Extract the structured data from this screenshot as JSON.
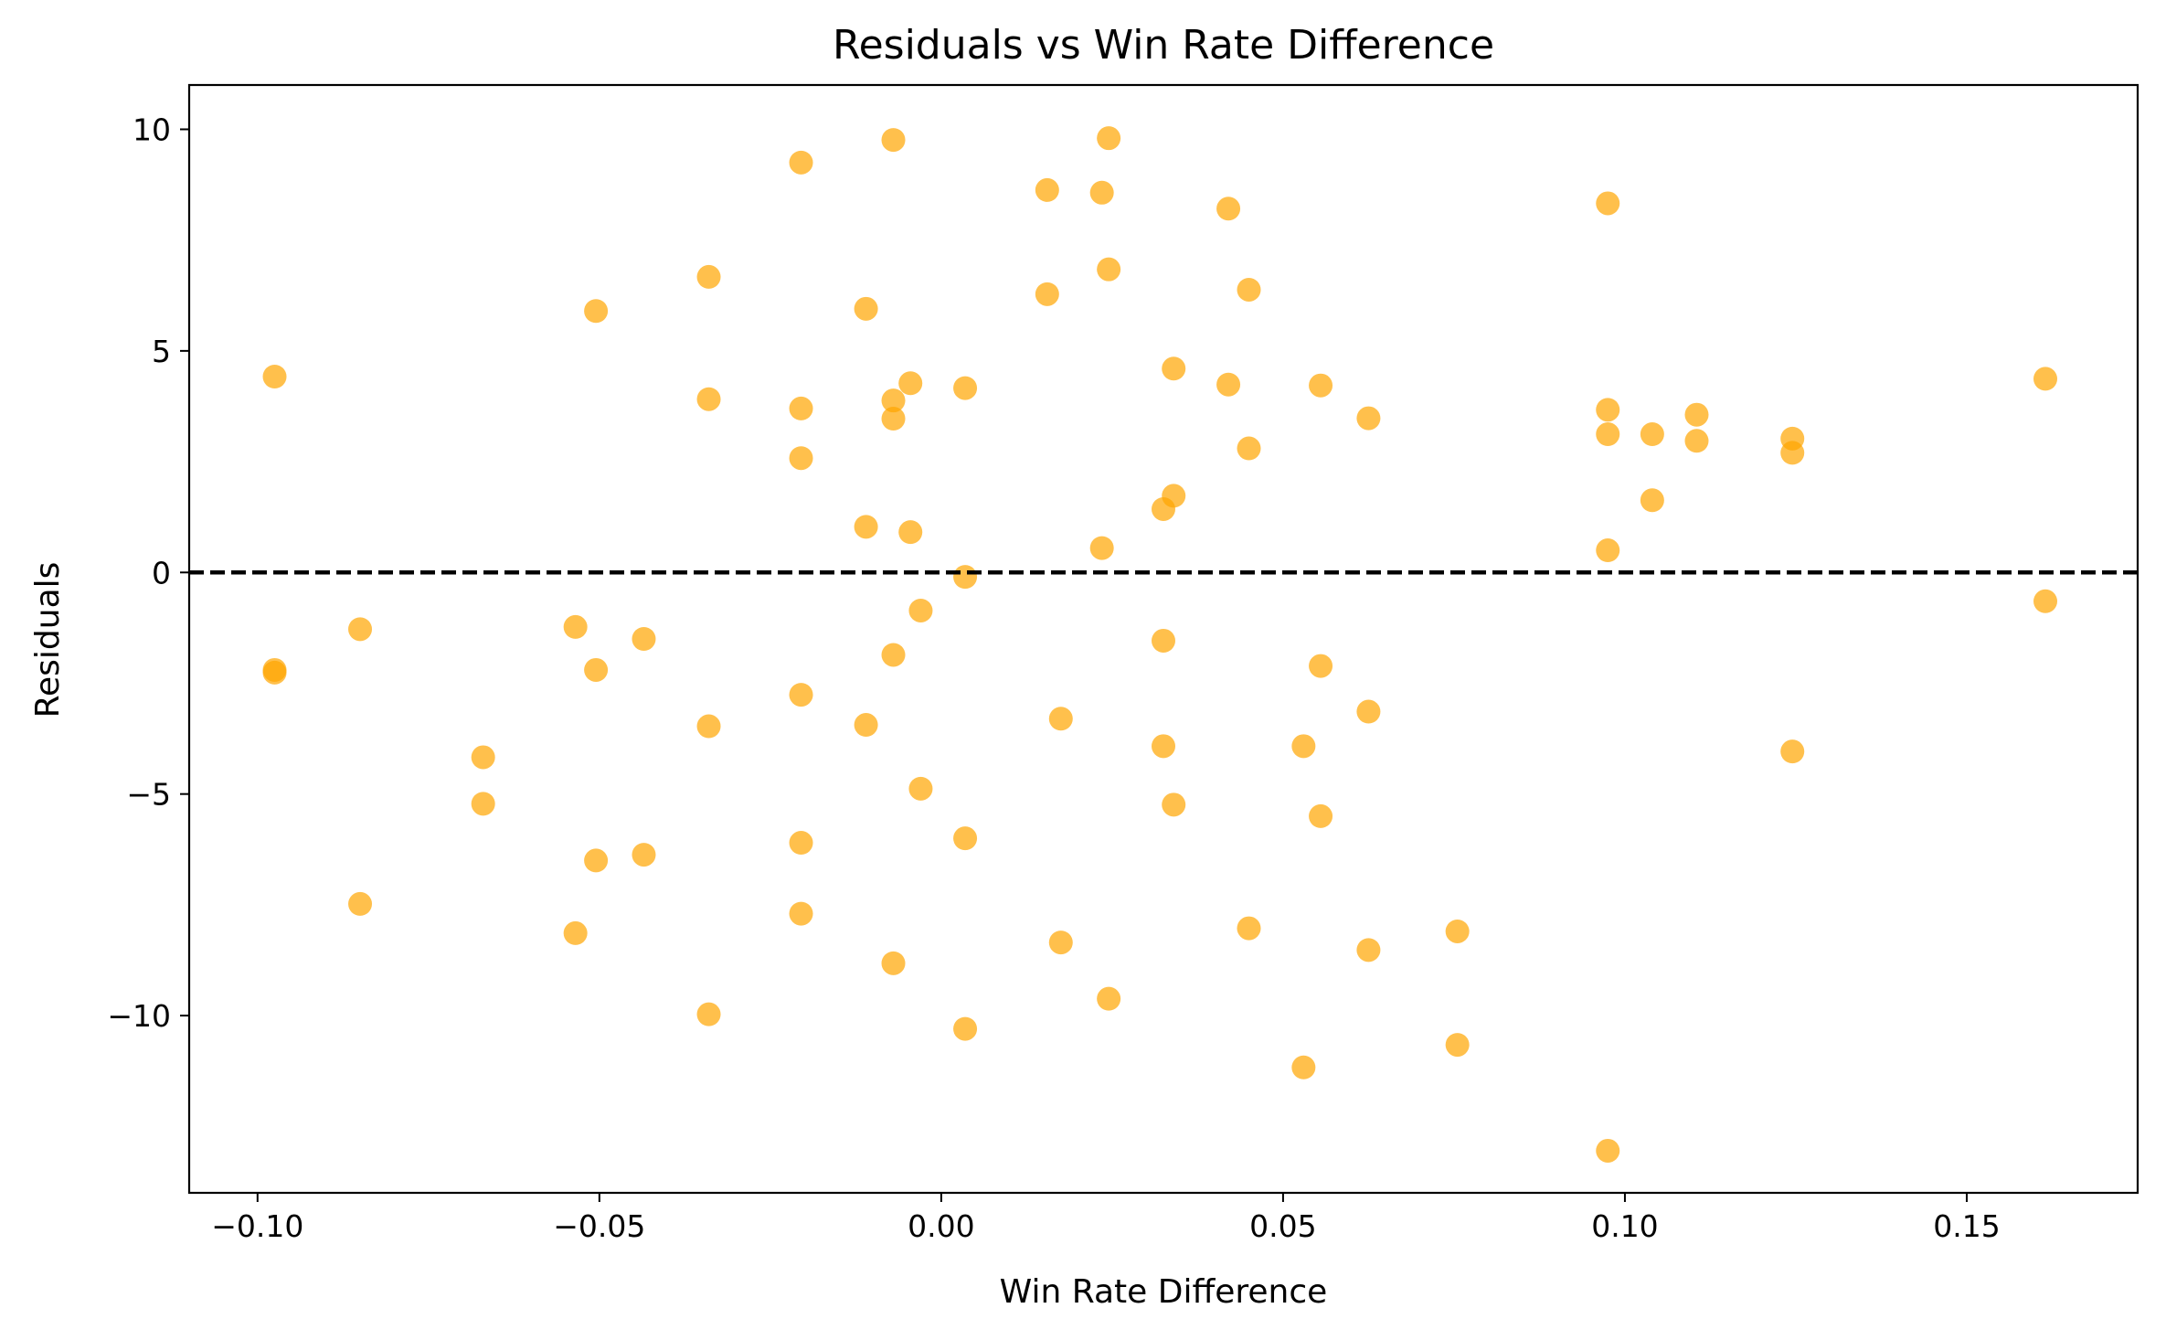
{
  "chart_data": {
    "type": "scatter",
    "title": "Residuals vs Win Rate Difference",
    "xlabel": "Win Rate Difference",
    "ylabel": "Residuals",
    "xlim": [
      -0.11,
      0.175
    ],
    "ylim": [
      -14.0,
      11.0
    ],
    "xticks": [
      {
        "value": -0.1,
        "label": "−0.10"
      },
      {
        "value": -0.05,
        "label": "−0.05"
      },
      {
        "value": 0.0,
        "label": "0.00"
      },
      {
        "value": 0.05,
        "label": "0.05"
      },
      {
        "value": 0.1,
        "label": "0.10"
      },
      {
        "value": 0.15,
        "label": "0.15"
      }
    ],
    "yticks": [
      {
        "value": 10,
        "label": "10"
      },
      {
        "value": 5,
        "label": "5"
      },
      {
        "value": 0,
        "label": "0"
      },
      {
        "value": -5,
        "label": "−5"
      },
      {
        "value": -10,
        "label": "−10"
      }
    ],
    "reference_line": {
      "y": 0,
      "style": "dashed",
      "color": "#000000"
    },
    "marker_color": "#FFA500",
    "marker_alpha": 0.7,
    "grid": false,
    "series": [
      {
        "name": "residuals",
        "points": [
          [
            -0.0975,
            4.42
          ],
          [
            -0.0975,
            -2.2
          ],
          [
            -0.0975,
            -2.26
          ],
          [
            -0.085,
            -1.28
          ],
          [
            -0.085,
            -7.48
          ],
          [
            -0.067,
            -4.17
          ],
          [
            -0.067,
            -5.22
          ],
          [
            -0.0535,
            -1.23
          ],
          [
            -0.0535,
            -8.14
          ],
          [
            -0.0505,
            5.9
          ],
          [
            -0.0505,
            -2.2
          ],
          [
            -0.0505,
            -6.5
          ],
          [
            -0.0435,
            -1.5
          ],
          [
            -0.0435,
            -6.37
          ],
          [
            -0.034,
            6.67
          ],
          [
            -0.034,
            3.91
          ],
          [
            -0.034,
            -3.47
          ],
          [
            -0.034,
            -9.97
          ],
          [
            -0.0205,
            9.25
          ],
          [
            -0.0205,
            3.7
          ],
          [
            -0.0205,
            2.58
          ],
          [
            -0.0205,
            -2.76
          ],
          [
            -0.0205,
            -6.1
          ],
          [
            -0.0205,
            -7.7
          ],
          [
            -0.011,
            5.95
          ],
          [
            -0.011,
            1.03
          ],
          [
            -0.011,
            -3.44
          ],
          [
            -0.007,
            9.76
          ],
          [
            -0.007,
            3.88
          ],
          [
            -0.007,
            3.47
          ],
          [
            -0.007,
            -1.86
          ],
          [
            -0.007,
            -8.82
          ],
          [
            -0.0045,
            4.27
          ],
          [
            -0.0045,
            0.91
          ],
          [
            -0.003,
            -0.86
          ],
          [
            -0.003,
            -4.88
          ],
          [
            0.0035,
            4.16
          ],
          [
            0.0035,
            -0.1
          ],
          [
            0.0035,
            -6.0
          ],
          [
            0.0035,
            -10.3
          ],
          [
            0.0155,
            8.63
          ],
          [
            0.0155,
            6.28
          ],
          [
            0.0175,
            -3.3
          ],
          [
            0.0175,
            -8.35
          ],
          [
            0.0235,
            8.57
          ],
          [
            0.0235,
            0.55
          ],
          [
            0.0245,
            9.8
          ],
          [
            0.0245,
            6.84
          ],
          [
            0.0245,
            -9.62
          ],
          [
            0.0325,
            1.43
          ],
          [
            0.0325,
            -1.54
          ],
          [
            0.0325,
            -3.92
          ],
          [
            0.034,
            4.6
          ],
          [
            0.034,
            1.73
          ],
          [
            0.034,
            -5.24
          ],
          [
            0.042,
            8.21
          ],
          [
            0.042,
            4.24
          ],
          [
            0.045,
            6.38
          ],
          [
            0.045,
            2.8
          ],
          [
            0.045,
            -8.03
          ],
          [
            0.053,
            -3.92
          ],
          [
            0.053,
            -11.17
          ],
          [
            0.0555,
            4.22
          ],
          [
            0.0555,
            -2.11
          ],
          [
            0.0555,
            -5.5
          ],
          [
            0.0625,
            3.48
          ],
          [
            0.0625,
            -3.14
          ],
          [
            0.0625,
            -8.52
          ],
          [
            0.0755,
            -8.1
          ],
          [
            0.0755,
            -10.66
          ],
          [
            0.0975,
            8.33
          ],
          [
            0.0975,
            3.67
          ],
          [
            0.0975,
            3.12
          ],
          [
            0.0975,
            0.5
          ],
          [
            0.0975,
            -13.05
          ],
          [
            0.104,
            3.12
          ],
          [
            0.104,
            1.63
          ],
          [
            0.1105,
            3.56
          ],
          [
            0.1105,
            2.97
          ],
          [
            0.1245,
            3.02
          ],
          [
            0.1245,
            2.7
          ],
          [
            0.1245,
            -4.04
          ],
          [
            0.1615,
            4.37
          ],
          [
            0.1615,
            -0.65
          ]
        ]
      }
    ]
  }
}
